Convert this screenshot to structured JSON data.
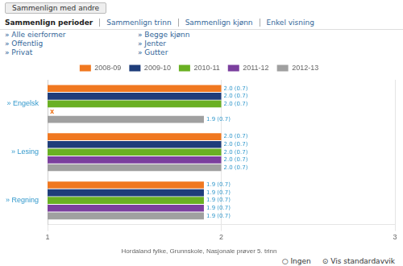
{
  "chart_data": {
    "type": "bar",
    "orientation": "horizontal",
    "subtitle": "Hordaland fylke, Grunnskole, Nasjonale prøver 5. trinn",
    "annotations": [
      "Sammenlign med andre",
      "Sammenlign perioder",
      "Sammenlign trinn",
      "Sammenlign kjønn",
      "Enkel visning",
      "» Alle eierformer",
      "» Offentlig",
      "» Privat",
      "» Begge kjønn",
      "» Jenter",
      "» Gutter",
      "○ Ingen",
      "⊙ Vis standardavvik",
      {
        "text": "x",
        "category": "» Engelsk",
        "series": "2011-12"
      }
    ],
    "categories": [
      "» Engelsk",
      "» Lesing",
      "» Regning"
    ],
    "series": [
      {
        "name": "2008-09",
        "color": "#f07820",
        "values": [
          2.0,
          2.0,
          1.9
        ],
        "value_labels": [
          "2.0 (0.7)",
          "2.0 (0.7)",
          "1.9 (0.7)"
        ]
      },
      {
        "name": "2009-10",
        "color": "#1f3d7a",
        "values": [
          2.0,
          2.0,
          1.9
        ],
        "value_labels": [
          "2.0 (0.7)",
          "2.0 (0.7)",
          "1.9 (0.7)"
        ]
      },
      {
        "name": "2010-11",
        "color": "#6ab023",
        "values": [
          2.0,
          2.0,
          1.9
        ],
        "value_labels": [
          "2.0 (0.7)",
          "2.0 (0.7)",
          "1.9 (0.7)"
        ]
      },
      {
        "name": "2011-12",
        "color": "#7b3f9e",
        "values": [
          null,
          2.0,
          1.9
        ],
        "value_labels": [
          null,
          "2.0 (0.7)",
          "1.9 (0.7)"
        ]
      },
      {
        "name": "2012-13",
        "color": "#a0a0a0",
        "values": [
          1.9,
          2.0,
          1.9
        ],
        "value_labels": [
          "1.9 (0.7)",
          "2.0 (0.7)",
          "1.9 (0.7)"
        ]
      }
    ],
    "xlim": [
      1,
      3
    ],
    "xticks": [
      1,
      2,
      3
    ],
    "grid": true,
    "data_labels": true,
    "legend": "top"
  }
}
